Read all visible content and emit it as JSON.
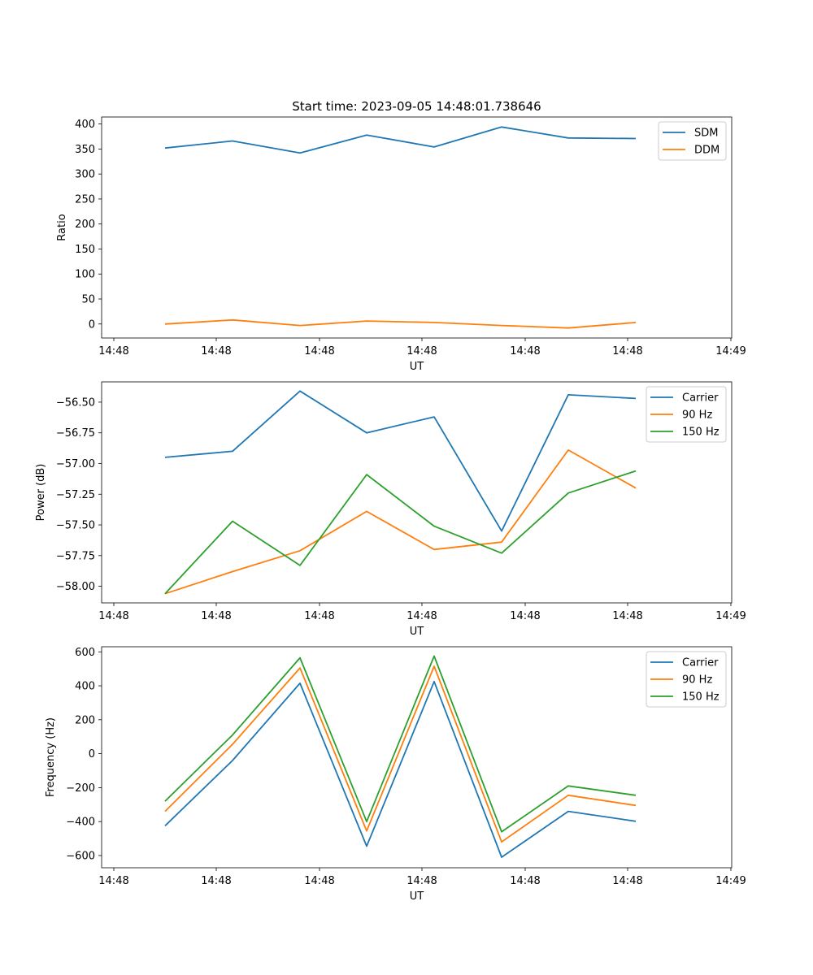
{
  "chart_data": [
    {
      "type": "line",
      "title": "Start time: 2023-09-05 14:48:01.738646",
      "xlabel": "UT",
      "ylabel": "Ratio",
      "xticks": [
        "14:48",
        "14:48",
        "14:48",
        "14:48",
        "14:48",
        "14:48",
        "14:48",
        "14:49"
      ],
      "yticks": [
        "0",
        "50",
        "100",
        "150",
        "200",
        "250",
        "300",
        "350",
        "400"
      ],
      "ylim": [
        -28,
        414
      ],
      "legend_position": "top-right",
      "series": [
        {
          "name": "SDM",
          "color": "#1f77b4",
          "values": [
            352,
            366,
            342,
            378,
            354,
            394,
            372,
            371
          ]
        },
        {
          "name": "DDM",
          "color": "#ff7f0e",
          "values": [
            0,
            8,
            -3,
            6,
            3,
            -3,
            -8,
            3
          ]
        }
      ]
    },
    {
      "type": "line",
      "title": "",
      "xlabel": "UT",
      "ylabel": "Power (dB)",
      "xticks": [
        "14:48",
        "14:48",
        "14:48",
        "14:48",
        "14:48",
        "14:48",
        "14:48",
        "14:49"
      ],
      "yticks": [
        "−58.00",
        "−57.75",
        "−57.50",
        "−57.25",
        "−57.00",
        "−56.75",
        "−56.50"
      ],
      "ylim": [
        -58.135,
        -56.335
      ],
      "legend_position": "top-right",
      "series": [
        {
          "name": "Carrier",
          "color": "#1f77b4",
          "values": [
            -56.95,
            -56.9,
            -56.41,
            -56.75,
            -56.62,
            -57.55,
            -56.44,
            -56.47
          ]
        },
        {
          "name": "90 Hz",
          "color": "#ff7f0e",
          "values": [
            -58.06,
            -57.88,
            -57.71,
            -57.39,
            -57.7,
            -57.64,
            -56.89,
            -57.2
          ]
        },
        {
          "name": "150 Hz",
          "color": "#2ca02c",
          "values": [
            -58.06,
            -57.47,
            -57.83,
            -57.09,
            -57.51,
            -57.73,
            -57.24,
            -57.06
          ]
        }
      ]
    },
    {
      "type": "line",
      "title": "",
      "xlabel": "UT",
      "ylabel": "Frequency (Hz)",
      "xticks": [
        "14:48",
        "14:48",
        "14:48",
        "14:48",
        "14:48",
        "14:48",
        "14:48",
        "14:49"
      ],
      "yticks": [
        "−600",
        "−400",
        "−200",
        "0",
        "200",
        "400",
        "600"
      ],
      "ylim": [
        -672,
        630
      ],
      "legend_position": "top-right",
      "series": [
        {
          "name": "Carrier",
          "color": "#1f77b4",
          "values": [
            -425,
            -40,
            415,
            -545,
            425,
            -610,
            -340,
            -398
          ]
        },
        {
          "name": "90 Hz",
          "color": "#ff7f0e",
          "values": [
            -340,
            55,
            505,
            -455,
            515,
            -520,
            -245,
            -305
          ]
        },
        {
          "name": "150 Hz",
          "color": "#2ca02c",
          "values": [
            -280,
            110,
            565,
            -400,
            575,
            -460,
            -190,
            -245
          ]
        }
      ]
    }
  ]
}
